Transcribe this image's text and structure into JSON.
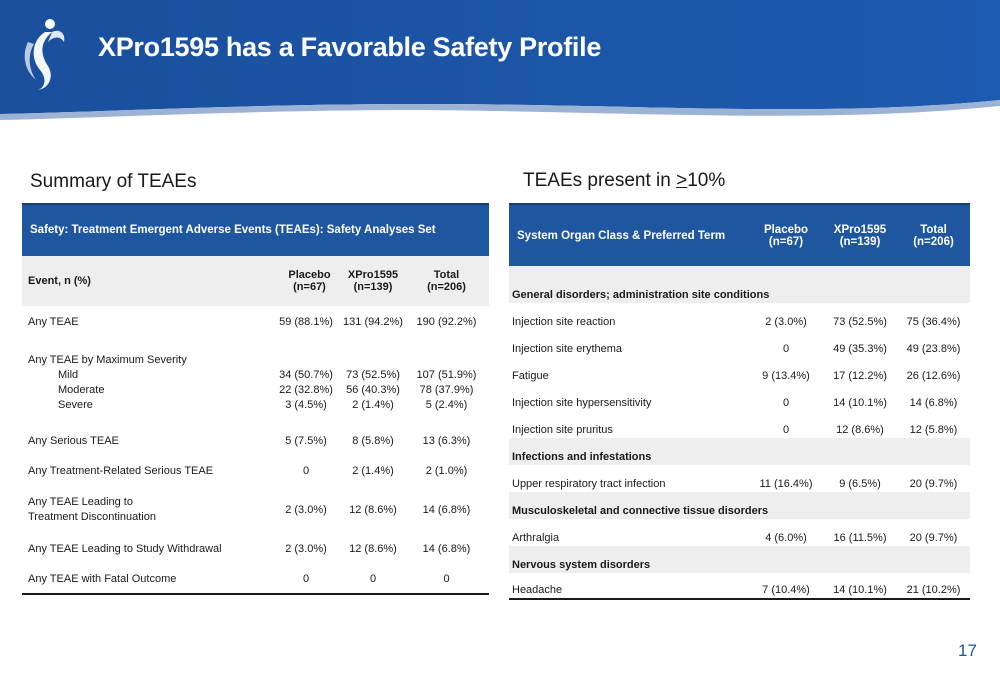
{
  "header": {
    "title": "XPro1595 has a Favorable Safety Profile"
  },
  "colors": {
    "brand_blue": "#1e56a0",
    "header_blue": "#1a4f9c",
    "row_gray": "#eeeeee"
  },
  "left": {
    "section_title": "Summary of TEAEs",
    "band_title": "Safety: Treatment Emergent Adverse Events (TEAEs): Safety Analyses Set",
    "columns": [
      "Event, n (%)",
      "Placebo (n=67)",
      "XPro1595\n(n=139)",
      "Total\n(n=206)"
    ],
    "rows": [
      {
        "label": "Any TEAE",
        "placebo": "59 (88.1%)",
        "xpro": "131 (94.2%)",
        "total": "190 (92.2%)"
      },
      {
        "label": "Any TEAE by Maximum Severity",
        "sub": [
          {
            "label": "Mild",
            "placebo": "34 (50.7%)",
            "xpro": "73 (52.5%)",
            "total": "107 (51.9%)"
          },
          {
            "label": "Moderate",
            "placebo": "22 (32.8%)",
            "xpro": "56 (40.3%)",
            "total": "78 (37.9%)"
          },
          {
            "label": "Severe",
            "placebo": "3 (4.5%)",
            "xpro": "2 (1.4%)",
            "total": "5 (2.4%)"
          }
        ]
      },
      {
        "label": "Any Serious TEAE",
        "placebo": "5 (7.5%)",
        "xpro": "8 (5.8%)",
        "total": "13 (6.3%)"
      },
      {
        "label": "Any Treatment-Related Serious TEAE",
        "placebo": "0",
        "xpro": "2 (1.4%)",
        "total": "2 (1.0%)"
      },
      {
        "label": "Any TEAE Leading to Treatment Discontinuation",
        "placebo": "2 (3.0%)",
        "xpro": "12 (8.6%)",
        "total": "14 (6.8%)"
      },
      {
        "label": "Any TEAE Leading to Study Withdrawal",
        "placebo": "2 (3.0%)",
        "xpro": "12 (8.6%)",
        "total": "14 (6.8%)"
      },
      {
        "label": "Any TEAE with Fatal Outcome",
        "placebo": "0",
        "xpro": "0",
        "total": "0"
      }
    ]
  },
  "right": {
    "section_title_prefix": "TEAEs present in ",
    "section_title_symbol": ">",
    "section_title_suffix": "10%",
    "columns": [
      "System Organ Class & Preferred Term",
      "Placebo\n(n=67)",
      "XPro1595\n(n=139)",
      "Total\n(n=206)"
    ],
    "groups": [
      {
        "category": "General disorders; administration site conditions",
        "items": [
          {
            "term": "Injection site reaction",
            "placebo": "2 (3.0%)",
            "xpro": "73 (52.5%)",
            "total": "75 (36.4%)"
          },
          {
            "term": "Injection site erythema",
            "placebo": "0",
            "xpro": "49 (35.3%)",
            "total": "49 (23.8%)"
          },
          {
            "term": "Fatigue",
            "placebo": "9 (13.4%)",
            "xpro": "17 (12.2%)",
            "total": "26 (12.6%)"
          },
          {
            "term": "Injection site hypersensitivity",
            "placebo": "0",
            "xpro": "14 (10.1%)",
            "total": "14 (6.8%)"
          },
          {
            "term": "Injection site pruritus",
            "placebo": "0",
            "xpro": "12 (8.6%)",
            "total": "12 (5.8%)"
          }
        ]
      },
      {
        "category": "Infections and infestations",
        "items": [
          {
            "term": "Upper respiratory tract infection",
            "placebo": "11 (16.4%)",
            "xpro": "9 (6.5%)",
            "total": "20 (9.7%)"
          }
        ]
      },
      {
        "category": "Musculoskeletal and connective tissue disorders",
        "items": [
          {
            "term": "Arthralgia",
            "placebo": "4 (6.0%)",
            "xpro": "16 (11.5%)",
            "total": "20 (9.7%)"
          }
        ]
      },
      {
        "category": "Nervous system disorders",
        "items": [
          {
            "term": "Headache",
            "placebo": "7 (10.4%)",
            "xpro": "14 (10.1%)",
            "total": "21 (10.2%)"
          }
        ]
      }
    ]
  },
  "page_number": "17"
}
